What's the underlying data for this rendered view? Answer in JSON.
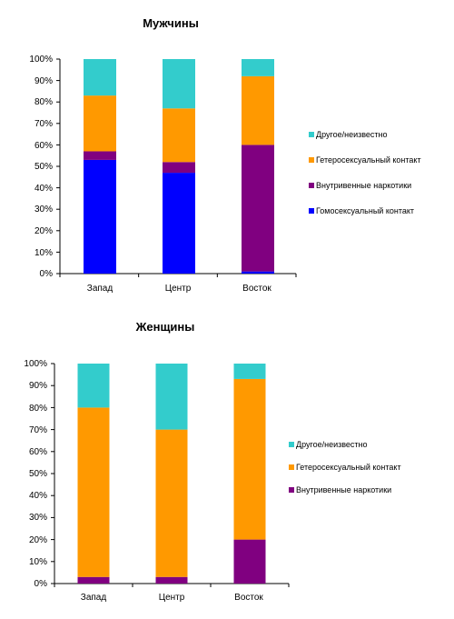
{
  "colors": {
    "other": "#33CCCC",
    "hetero": "#FF9900",
    "idu": "#800080",
    "msm": "#0000FF"
  },
  "chart_data": [
    {
      "type": "bar",
      "stacked": true,
      "title": "Мужчины",
      "categories": [
        "Запад",
        "Центр",
        "Восток"
      ],
      "yticks": [
        "0%",
        "10%",
        "20%",
        "30%",
        "40%",
        "50%",
        "60%",
        "70%",
        "80%",
        "90%",
        "100%"
      ],
      "ylim": [
        0,
        100
      ],
      "legend_position": "right",
      "series": [
        {
          "name": "Гомосексуальный контакт",
          "color_key": "msm",
          "values": [
            53,
            47,
            1
          ]
        },
        {
          "name": "Внутривенные наркотики",
          "color_key": "idu",
          "values": [
            4,
            5,
            59
          ]
        },
        {
          "name": "Гетеросексуальный контакт",
          "color_key": "hetero",
          "values": [
            26,
            25,
            32
          ]
        },
        {
          "name": "Другое/неизвестно",
          "color_key": "other",
          "values": [
            17,
            23,
            8
          ]
        }
      ]
    },
    {
      "type": "bar",
      "stacked": true,
      "title": "Женщины",
      "categories": [
        "Запад",
        "Центр",
        "Восток"
      ],
      "yticks": [
        "0%",
        "10%",
        "20%",
        "30%",
        "40%",
        "50%",
        "60%",
        "70%",
        "80%",
        "90%",
        "100%"
      ],
      "ylim": [
        0,
        100
      ],
      "legend_position": "right",
      "series": [
        {
          "name": "Внутривенные наркотики",
          "color_key": "idu",
          "values": [
            3,
            3,
            20
          ]
        },
        {
          "name": "Гетеросексуальный контакт",
          "color_key": "hetero",
          "values": [
            77,
            67,
            73
          ]
        },
        {
          "name": "Другое/неизвестно",
          "color_key": "other",
          "values": [
            20,
            30,
            7
          ]
        }
      ]
    }
  ]
}
